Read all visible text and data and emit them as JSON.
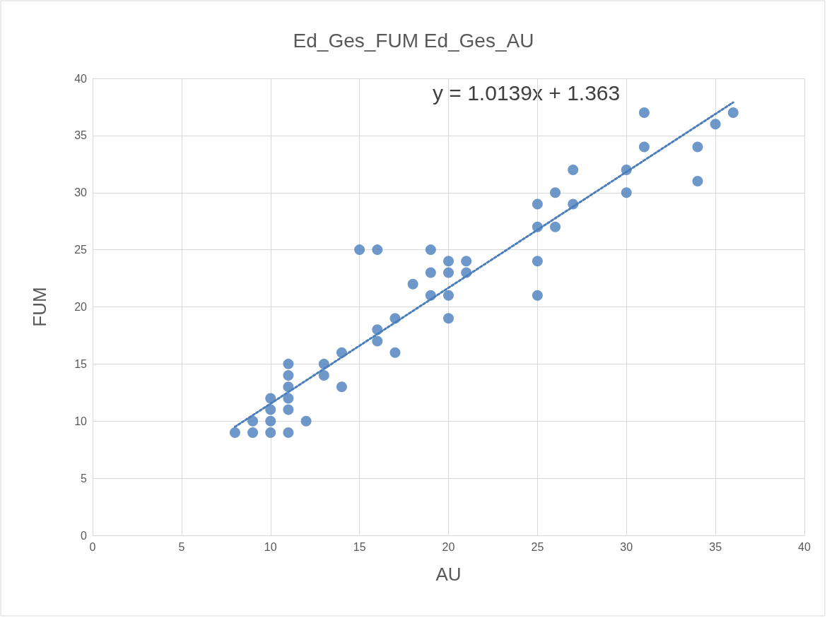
{
  "chart_data": {
    "type": "scatter",
    "title": "Ed_Ges_FUM Ed_Ges_AU",
    "xlabel": "AU",
    "ylabel": "FUM",
    "annotations": [
      "y = 1.0139x + 1.363"
    ],
    "xlim": [
      0,
      40
    ],
    "xticks": [
      0,
      5,
      10,
      15,
      20,
      25,
      30,
      35,
      40
    ],
    "ylim": [
      0,
      40
    ],
    "yticks": [
      0,
      5,
      10,
      15,
      20,
      25,
      30,
      35,
      40
    ],
    "grid": true,
    "marker": "circle",
    "series": [
      {
        "color": "#4a7ebb",
        "x": [
          8,
          9,
          9,
          10,
          10,
          10,
          10,
          11,
          11,
          11,
          11,
          11,
          11,
          12,
          13,
          13,
          14,
          14,
          15,
          16,
          16,
          16,
          17,
          17,
          18,
          19,
          19,
          19,
          20,
          20,
          20,
          20,
          21,
          21,
          25,
          25,
          25,
          25,
          26,
          26,
          27,
          27,
          30,
          30,
          31,
          31,
          34,
          34,
          35,
          36
        ],
        "values": [
          9,
          9,
          10,
          9,
          10,
          11,
          12,
          9,
          11,
          12,
          13,
          14,
          15,
          10,
          14,
          15,
          13,
          16,
          25,
          25,
          17,
          18,
          16,
          19,
          22,
          21,
          23,
          25,
          19,
          21,
          23,
          24,
          23,
          24,
          21,
          24,
          27,
          29,
          27,
          30,
          29,
          32,
          30,
          32,
          34,
          37,
          31,
          34,
          36,
          37
        ]
      },
      {
        "type": "line",
        "color": "#4a7ebb",
        "line_style": "dotted",
        "marker": "none",
        "x": [
          8,
          36
        ],
        "values": [
          9.5,
          37.9
        ]
      }
    ]
  }
}
